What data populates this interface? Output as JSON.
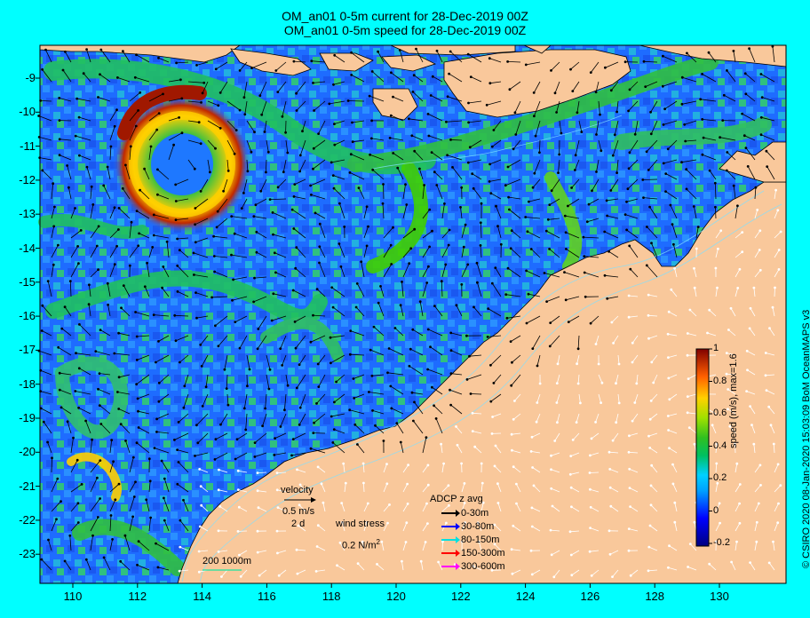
{
  "title": {
    "line1": "OM_an01 0-5m current for 28-Dec-2019 00Z",
    "line2": "OM_an01 0-5m speed for 28-Dec-2019 00Z"
  },
  "axes": {
    "x_ticks": [
      "110",
      "112",
      "114",
      "116",
      "118",
      "120",
      "122",
      "124",
      "126",
      "128",
      "130"
    ],
    "y_ticks": [
      "-9",
      "-10",
      "-11",
      "-12",
      "-13",
      "-14",
      "-15",
      "-16",
      "-17",
      "-18",
      "-19",
      "-20",
      "-21",
      "-22",
      "-23"
    ]
  },
  "colorbar": {
    "label": "speed (m/s), max=1.6",
    "ticks": [
      "1",
      "0.8",
      "0.6",
      "0.4",
      "0.2",
      "0",
      "-0.2"
    ]
  },
  "legend": {
    "velocity_label": "velocity",
    "velocity_scale": "0.5 m/s",
    "velocity_time": "2 d",
    "wind_label": "wind stress",
    "wind_scale": "0.2 N/m",
    "wind_sup": "2",
    "adcp_title": "ADCP z avg",
    "adcp_items": [
      {
        "label": "0-30m",
        "color": "#000000"
      },
      {
        "label": "30-80m",
        "color": "#0000ff"
      },
      {
        "label": "80-150m",
        "color": "#00e0e0"
      },
      {
        "label": "150-300m",
        "color": "#ff0000"
      },
      {
        "label": "300-600m",
        "color": "#ff00ff"
      }
    ],
    "scale_bar": "200  1000m"
  },
  "credit": "© CSIRO 2020  08-Jan-2020 15:03:09 BoM OceanMAPS v3",
  "colors": {
    "land": "#f9c89b",
    "ocean_low": "#1a5cff",
    "ocean_mid": "#00b060",
    "ocean_high": "#b22000"
  }
}
